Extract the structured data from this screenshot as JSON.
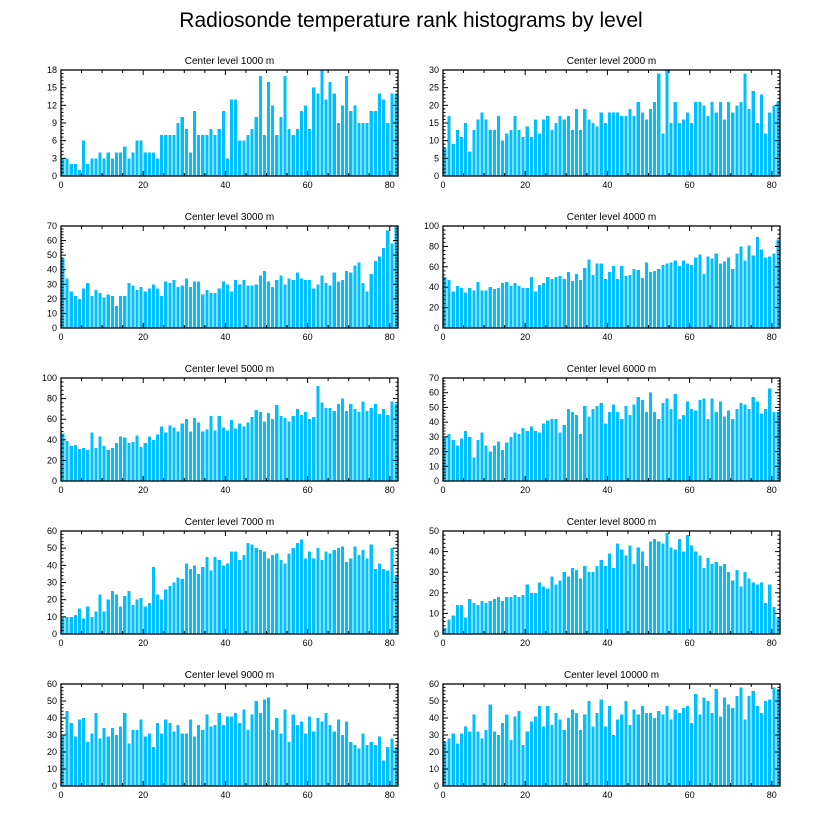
{
  "title": "Radiosonde temperature rank histograms by level",
  "colors": {
    "bar": "#00bfff",
    "axis": "#000000",
    "background": "#ffffff"
  },
  "chart_data": [
    {
      "type": "bar",
      "title": "Center level 1000 m",
      "xlim": [
        0,
        82
      ],
      "ylim": [
        0,
        18
      ],
      "xticks": [
        0,
        20,
        40,
        60,
        80
      ],
      "yticks": [
        0,
        3,
        6,
        9,
        12,
        15,
        18
      ],
      "values": [
        3,
        3,
        2,
        2,
        1,
        6,
        2,
        3,
        3,
        4,
        3,
        4,
        3,
        4,
        4,
        5,
        3,
        4,
        6,
        6,
        4,
        4,
        4,
        3,
        7,
        7,
        7,
        7,
        9,
        10,
        8,
        4,
        11,
        7,
        7,
        7,
        8,
        7,
        8,
        11,
        3,
        13,
        13,
        6,
        6,
        7,
        8,
        10,
        17,
        7,
        16,
        12,
        7,
        10,
        17,
        8,
        7,
        8,
        11,
        12,
        8,
        15,
        14,
        18,
        13,
        16,
        14,
        9,
        12,
        17,
        11,
        12,
        9,
        9,
        9,
        11,
        11,
        14,
        13,
        9,
        14,
        14
      ]
    },
    {
      "type": "bar",
      "title": "Center level 2000 m",
      "xlim": [
        0,
        82
      ],
      "ylim": [
        0,
        30
      ],
      "xticks": [
        0,
        20,
        40,
        60,
        80
      ],
      "yticks": [
        0,
        5,
        10,
        15,
        20,
        25,
        30
      ],
      "values": [
        8,
        17,
        9,
        13,
        11,
        15,
        7,
        13,
        16,
        18,
        16,
        13,
        13,
        17,
        10,
        12,
        13,
        17,
        13,
        11,
        14,
        11,
        16,
        12,
        16,
        17,
        13,
        15,
        17,
        16,
        17,
        13,
        19,
        13,
        19,
        16,
        15,
        14,
        18,
        15,
        18,
        18,
        18,
        17,
        17,
        19,
        17,
        21,
        18,
        16,
        19,
        21,
        29,
        12,
        30,
        15,
        21,
        15,
        16,
        18,
        15,
        21,
        21,
        20,
        17,
        21,
        18,
        21,
        16,
        21,
        18,
        20,
        21,
        29,
        19,
        24,
        15,
        23,
        12,
        18,
        20,
        21
      ]
    },
    {
      "type": "bar",
      "title": "Center level 3000 m",
      "xlim": [
        0,
        82
      ],
      "ylim": [
        0,
        70
      ],
      "xticks": [
        0,
        20,
        40,
        60,
        80
      ],
      "yticks": [
        0,
        10,
        20,
        30,
        40,
        50,
        60,
        70
      ],
      "values": [
        48,
        34,
        25,
        22,
        20,
        27,
        31,
        22,
        26,
        24,
        21,
        23,
        22,
        15,
        22,
        22,
        31,
        29,
        26,
        28,
        25,
        27,
        30,
        27,
        22,
        32,
        31,
        33,
        28,
        29,
        34,
        28,
        32,
        32,
        23,
        26,
        24,
        24,
        27,
        32,
        30,
        25,
        33,
        30,
        33,
        29,
        29,
        30,
        36,
        39,
        32,
        28,
        33,
        36,
        30,
        34,
        33,
        38,
        34,
        33,
        33,
        27,
        30,
        36,
        31,
        29,
        38,
        32,
        33,
        39,
        38,
        43,
        45,
        31,
        25,
        37,
        46,
        49,
        55,
        67,
        58,
        70
      ]
    },
    {
      "type": "bar",
      "title": "Center level 4000 m",
      "xlim": [
        0,
        82
      ],
      "ylim": [
        0,
        100
      ],
      "xticks": [
        0,
        20,
        40,
        60,
        80
      ],
      "yticks": [
        0,
        20,
        40,
        60,
        80,
        100
      ],
      "values": [
        50,
        47,
        36,
        41,
        39,
        35,
        39,
        37,
        45,
        37,
        37,
        40,
        38,
        39,
        44,
        45,
        41,
        44,
        41,
        39,
        39,
        50,
        36,
        42,
        44,
        50,
        48,
        50,
        51,
        48,
        55,
        46,
        53,
        47,
        59,
        67,
        52,
        63,
        63,
        48,
        55,
        61,
        48,
        61,
        51,
        52,
        58,
        57,
        49,
        64,
        55,
        56,
        58,
        62,
        63,
        64,
        66,
        61,
        66,
        63,
        62,
        69,
        72,
        53,
        70,
        68,
        73,
        63,
        65,
        69,
        58,
        73,
        80,
        66,
        81,
        71,
        89,
        77,
        69,
        70,
        73,
        87
      ]
    },
    {
      "type": "bar",
      "title": "Center level 5000 m",
      "xlim": [
        0,
        82
      ],
      "ylim": [
        0,
        100
      ],
      "xticks": [
        0,
        20,
        40,
        60,
        80
      ],
      "yticks": [
        0,
        20,
        40,
        60,
        80,
        100
      ],
      "values": [
        46,
        39,
        34,
        35,
        31,
        32,
        30,
        47,
        32,
        43,
        34,
        30,
        32,
        37,
        43,
        42,
        37,
        38,
        44,
        33,
        37,
        43,
        40,
        45,
        53,
        47,
        54,
        52,
        48,
        56,
        60,
        48,
        61,
        57,
        48,
        50,
        63,
        49,
        63,
        52,
        49,
        59,
        51,
        56,
        53,
        57,
        62,
        69,
        67,
        58,
        66,
        60,
        74,
        63,
        61,
        58,
        63,
        70,
        64,
        67,
        60,
        62,
        92,
        76,
        71,
        71,
        68,
        75,
        80,
        68,
        75,
        70,
        67,
        77,
        68,
        71,
        75,
        65,
        70,
        64,
        77,
        75
      ]
    },
    {
      "type": "bar",
      "title": "Center level 6000 m",
      "xlim": [
        0,
        82
      ],
      "ylim": [
        0,
        70
      ],
      "xticks": [
        0,
        20,
        40,
        60,
        80
      ],
      "yticks": [
        0,
        10,
        20,
        30,
        40,
        50,
        60,
        70
      ],
      "values": [
        30,
        32,
        28,
        24,
        29,
        34,
        30,
        16,
        28,
        33,
        24,
        20,
        24,
        27,
        21,
        26,
        30,
        33,
        32,
        36,
        34,
        37,
        34,
        33,
        39,
        41,
        42,
        42,
        33,
        38,
        49,
        47,
        45,
        32,
        51,
        44,
        49,
        51,
        53,
        39,
        47,
        52,
        47,
        42,
        51,
        45,
        52,
        57,
        55,
        47,
        60,
        47,
        42,
        53,
        56,
        49,
        59,
        42,
        45,
        54,
        49,
        48,
        55,
        56,
        42,
        56,
        47,
        54,
        44,
        48,
        42,
        49,
        53,
        52,
        49,
        57,
        54,
        46,
        49,
        63,
        47,
        47
      ]
    },
    {
      "type": "bar",
      "title": "Center level 7000 m",
      "xlim": [
        0,
        82
      ],
      "ylim": [
        0,
        60
      ],
      "xticks": [
        0,
        20,
        40,
        60,
        80
      ],
      "yticks": [
        0,
        10,
        20,
        30,
        40,
        50,
        60
      ],
      "values": [
        10,
        10,
        10,
        11,
        15,
        9,
        16,
        10,
        13,
        23,
        13,
        20,
        25,
        23,
        16,
        22,
        25,
        17,
        20,
        21,
        16,
        18,
        39,
        23,
        20,
        26,
        28,
        30,
        33,
        32,
        41,
        38,
        40,
        35,
        39,
        45,
        37,
        45,
        43,
        40,
        41,
        48,
        48,
        43,
        46,
        53,
        52,
        50,
        49,
        48,
        44,
        46,
        47,
        43,
        41,
        47,
        50,
        53,
        55,
        44,
        48,
        44,
        50,
        43,
        48,
        47,
        49,
        50,
        51,
        42,
        44,
        51,
        46,
        49,
        44,
        52,
        38,
        41,
        38,
        37,
        50,
        34
      ]
    },
    {
      "type": "bar",
      "title": "Center level 8000 m",
      "xlim": [
        0,
        82
      ],
      "ylim": [
        0,
        50
      ],
      "xticks": [
        0,
        20,
        40,
        60,
        80
      ],
      "yticks": [
        0,
        10,
        20,
        30,
        40,
        50
      ],
      "values": [
        3,
        7,
        9,
        14,
        14,
        8,
        17,
        15,
        14,
        16,
        15,
        16,
        17,
        18,
        16,
        18,
        18,
        19,
        18,
        19,
        24,
        20,
        20,
        25,
        23,
        22,
        28,
        24,
        26,
        30,
        28,
        32,
        31,
        27,
        33,
        30,
        30,
        33,
        36,
        33,
        39,
        32,
        44,
        41,
        38,
        43,
        34,
        42,
        40,
        33,
        45,
        46,
        45,
        44,
        49,
        42,
        41,
        46,
        40,
        48,
        43,
        40,
        38,
        32,
        37,
        34,
        35,
        33,
        34,
        30,
        26,
        31,
        23,
        30,
        27,
        25,
        24,
        25,
        15,
        24,
        13,
        8
      ]
    },
    {
      "type": "bar",
      "title": "Center level 9000 m",
      "xlim": [
        0,
        82
      ],
      "ylim": [
        0,
        60
      ],
      "xticks": [
        0,
        20,
        40,
        60,
        80
      ],
      "yticks": [
        0,
        10,
        20,
        30,
        40,
        50,
        60
      ],
      "values": [
        30,
        44,
        37,
        29,
        39,
        40,
        26,
        31,
        43,
        28,
        34,
        29,
        34,
        30,
        35,
        43,
        25,
        33,
        33,
        39,
        29,
        31,
        23,
        37,
        31,
        39,
        37,
        32,
        36,
        31,
        31,
        39,
        29,
        36,
        33,
        42,
        35,
        36,
        43,
        36,
        41,
        41,
        43,
        37,
        45,
        33,
        42,
        50,
        43,
        51,
        52,
        33,
        40,
        31,
        45,
        26,
        42,
        36,
        38,
        31,
        41,
        32,
        40,
        38,
        43,
        36,
        32,
        39,
        30,
        38,
        26,
        24,
        22,
        31,
        24,
        26,
        24,
        29,
        15,
        23,
        28,
        23
      ]
    },
    {
      "type": "bar",
      "title": "Center level 10000 m",
      "xlim": [
        0,
        82
      ],
      "ylim": [
        0,
        60
      ],
      "xticks": [
        0,
        20,
        40,
        60,
        80
      ],
      "yticks": [
        0,
        10,
        20,
        30,
        40,
        50,
        60
      ],
      "values": [
        26,
        28,
        31,
        25,
        31,
        35,
        32,
        42,
        32,
        28,
        33,
        48,
        32,
        30,
        37,
        42,
        27,
        41,
        44,
        24,
        32,
        38,
        41,
        47,
        35,
        47,
        36,
        43,
        39,
        33,
        40,
        45,
        43,
        33,
        42,
        50,
        35,
        43,
        51,
        35,
        47,
        30,
        39,
        42,
        50,
        36,
        45,
        42,
        47,
        43,
        43,
        40,
        44,
        42,
        47,
        39,
        45,
        43,
        46,
        47,
        37,
        54,
        42,
        52,
        50,
        43,
        57,
        41,
        52,
        48,
        46,
        53,
        58,
        39,
        53,
        56,
        47,
        43,
        50,
        51,
        58,
        57
      ]
    }
  ]
}
